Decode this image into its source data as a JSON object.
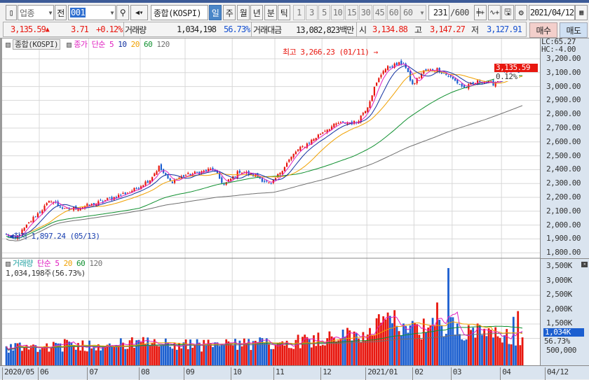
{
  "toolbar": {
    "market_type": "업종",
    "prev_button": "전",
    "code": "001",
    "name": "종합(KOSPI)",
    "periods": [
      "일",
      "주",
      "월",
      "년",
      "분",
      "틱"
    ],
    "selected_period": "일",
    "intervals": [
      "1",
      "3",
      "5",
      "10",
      "15",
      "30",
      "45",
      "60"
    ],
    "interval_select": "60",
    "count": "231",
    "count_max": "/600",
    "date": "2021/04/12"
  },
  "quote": {
    "price": "3,135.59",
    "arrow": "▲",
    "change": "3.71",
    "change_pct": "+0.12%",
    "volume_label": "거래량",
    "volume": "1,034,198",
    "volume_pct": "56.73%",
    "amount_label": "거래대금",
    "amount": "13,082,823백만",
    "open_label": "시",
    "open": "3,134.88",
    "high_label": "고",
    "high": "3,147.27",
    "low_label": "저",
    "low": "3,127.91",
    "buy_label": "매수",
    "sell_label": "매도"
  },
  "price_panel": {
    "legend_name": "종합(KOSPI)",
    "legend_ma": "종가 단순 5",
    "ma_periods": [
      "10",
      "20",
      "60",
      "120"
    ],
    "high_note": "최고 3,266.23 (01/11)",
    "low_note": "최저 1,897.24 (05/13)",
    "lc": "LC:65.27",
    "hc": "HC:-4.00",
    "current": "3,135.59",
    "current_pct": "0.12%",
    "axis_labels": [
      "3,200.00",
      "3,100.00",
      "3,000.00",
      "2,900.00",
      "2,800.00",
      "2,700.00",
      "2,600.00",
      "2,500.00",
      "2,400.00",
      "2,300.00",
      "2,200.00",
      "2,100.00",
      "2,000.00",
      "1,900.00",
      "1,800.00"
    ]
  },
  "volume_panel": {
    "legend_name": "거래량",
    "legend_ma": "단순 5",
    "ma_periods": [
      "20",
      "60",
      "120"
    ],
    "info": "1,034,198주(56.73%)",
    "axis_labels": [
      "3,500K",
      "3,000K",
      "2,500K",
      "2,000K",
      "1,500K"
    ],
    "current": "1,034K",
    "current_pct": "56.73%",
    "bottom_label": "500,000"
  },
  "date_axis": {
    "labels": [
      "2020/05",
      "06",
      "07",
      "08",
      "09",
      "10",
      "11",
      "12",
      "2021/01",
      "02",
      "03",
      "04"
    ],
    "last": "04/12"
  },
  "colors": {
    "up": "#e8170f",
    "down": "#1c5fd0",
    "ma5": "#e020c0",
    "ma10": "#1030a0",
    "ma20": "#f0a000",
    "ma60": "#109030",
    "ma120": "#707070"
  },
  "chart_data": {
    "type": "candlestick",
    "bars": 231,
    "close_keypoints": [
      [
        0,
        1930
      ],
      [
        4,
        1900
      ],
      [
        8,
        1975
      ],
      [
        12,
        2050
      ],
      [
        20,
        2180
      ],
      [
        26,
        2110
      ],
      [
        32,
        2125
      ],
      [
        39,
        2150
      ],
      [
        48,
        2200
      ],
      [
        57,
        2255
      ],
      [
        64,
        2330
      ],
      [
        68,
        2420
      ],
      [
        73,
        2310
      ],
      [
        79,
        2355
      ],
      [
        86,
        2380
      ],
      [
        92,
        2405
      ],
      [
        97,
        2290
      ],
      [
        104,
        2390
      ],
      [
        111,
        2355
      ],
      [
        118,
        2290
      ],
      [
        123,
        2405
      ],
      [
        129,
        2530
      ],
      [
        136,
        2610
      ],
      [
        142,
        2685
      ],
      [
        148,
        2735
      ],
      [
        156,
        2740
      ],
      [
        161,
        2860
      ],
      [
        164,
        2990
      ],
      [
        168,
        3120
      ],
      [
        172,
        3150
      ],
      [
        177,
        3170
      ],
      [
        181,
        3010
      ],
      [
        186,
        3110
      ],
      [
        192,
        3125
      ],
      [
        198,
        3065
      ],
      [
        204,
        2990
      ],
      [
        211,
        3040
      ],
      [
        217,
        3020
      ],
      [
        223,
        3100
      ],
      [
        230,
        3135
      ]
    ],
    "volume_keypoints_k": [
      [
        0,
        700
      ],
      [
        30,
        760
      ],
      [
        60,
        820
      ],
      [
        90,
        760
      ],
      [
        120,
        820
      ],
      [
        140,
        1000
      ],
      [
        160,
        1150
      ],
      [
        170,
        1600
      ],
      [
        185,
        1350
      ],
      [
        200,
        1400
      ],
      [
        215,
        1100
      ],
      [
        230,
        1034
      ]
    ],
    "volume_spikes_k": [
      [
        192,
        2250
      ],
      [
        197,
        3450
      ],
      [
        170,
        1900
      ],
      [
        228,
        1950
      ],
      [
        226,
        1750
      ]
    ],
    "month_start_index": [
      0,
      15,
      37,
      60,
      80,
      101,
      120,
      141,
      161,
      182,
      199,
      221
    ],
    "ylim": [
      1800,
      3200
    ],
    "volume_ylim_k": [
      0,
      3500
    ]
  }
}
